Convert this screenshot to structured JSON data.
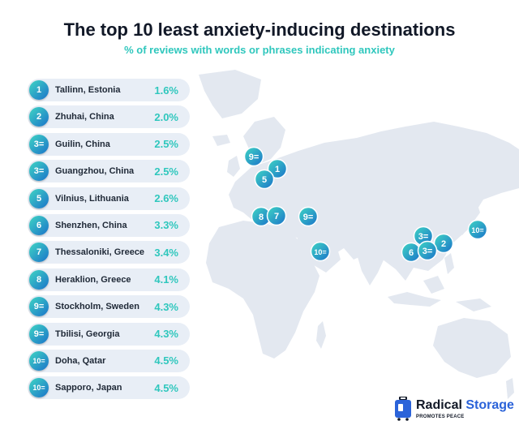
{
  "header": {
    "title": "The top 10 least anxiety-inducing destinations",
    "subtitle": "% of reviews with words or phrases indicating anxiety"
  },
  "colors": {
    "accent": "#2fc7bd",
    "badge_start": "#3fd6c4",
    "badge_end": "#1b73c9",
    "row_bg": "#e8eef6",
    "map_land": "#e3e8f0",
    "brand_blue": "#2b63d9"
  },
  "chart_data": {
    "type": "table",
    "title": "The top 10 least anxiety-inducing destinations",
    "subtitle": "% of reviews with words or phrases indicating anxiety",
    "rows": [
      {
        "rank": "1",
        "place": "Tallinn, Estonia",
        "value": 1.6,
        "label": "1.6%"
      },
      {
        "rank": "2",
        "place": "Zhuhai, China",
        "value": 2.0,
        "label": "2.0%"
      },
      {
        "rank": "3=",
        "place": "Guilin, China",
        "value": 2.5,
        "label": "2.5%"
      },
      {
        "rank": "3=",
        "place": "Guangzhou, China",
        "value": 2.5,
        "label": "2.5%"
      },
      {
        "rank": "5",
        "place": "Vilnius, Lithuania",
        "value": 2.6,
        "label": "2.6%"
      },
      {
        "rank": "6",
        "place": "Shenzhen, China",
        "value": 3.3,
        "label": "3.3%"
      },
      {
        "rank": "7",
        "place": "Thessaloniki, Greece",
        "value": 3.4,
        "label": "3.4%"
      },
      {
        "rank": "8",
        "place": "Heraklion, Greece",
        "value": 4.1,
        "label": "4.1%"
      },
      {
        "rank": "9=",
        "place": "Stockholm, Sweden",
        "value": 4.3,
        "label": "4.3%"
      },
      {
        "rank": "9=",
        "place": "Tbilisi, Georgia",
        "value": 4.3,
        "label": "4.3%"
      },
      {
        "rank": "10=",
        "place": "Doha, Qatar",
        "value": 4.5,
        "label": "4.5%"
      },
      {
        "rank": "10=",
        "place": "Sapporo, Japan",
        "value": 4.5,
        "label": "4.5%"
      }
    ],
    "map_markers": [
      "9=",
      "1",
      "5",
      "8",
      "7",
      "9=",
      "10=",
      "3=",
      "2",
      "6",
      "3=",
      "10="
    ]
  },
  "logo": {
    "word1": "Radical",
    "word2": "Storage",
    "tagline": "PROMOTES PEACE"
  }
}
